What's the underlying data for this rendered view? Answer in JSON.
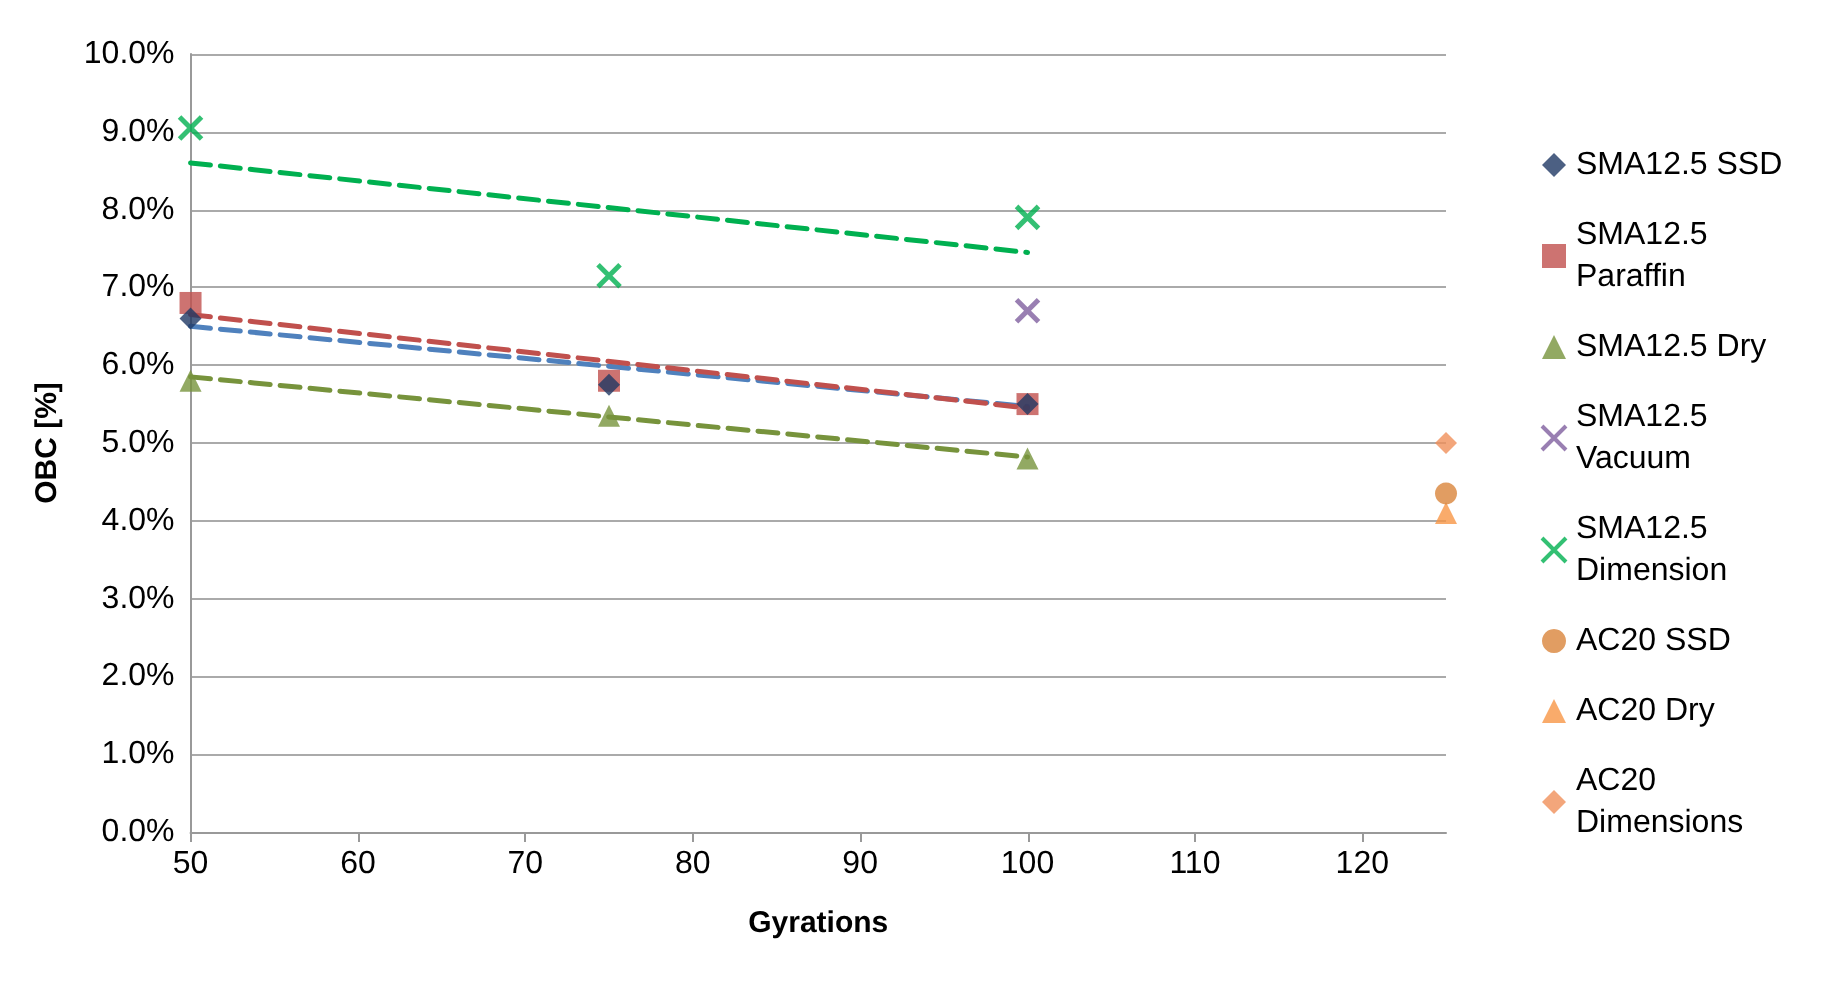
{
  "chart_data": {
    "type": "scatter",
    "xlabel": "Gyrations",
    "ylabel": "OBC [%]",
    "xlim": [
      50,
      125
    ],
    "xticks": [
      50,
      60,
      70,
      80,
      90,
      100,
      110,
      120
    ],
    "ylim": [
      0,
      10
    ],
    "yticks": [
      {
        "value": 0,
        "label": "0.0%"
      },
      {
        "value": 1,
        "label": "1.0%"
      },
      {
        "value": 2,
        "label": "2.0%"
      },
      {
        "value": 3,
        "label": "3.0%"
      },
      {
        "value": 4,
        "label": "4.0%"
      },
      {
        "value": 5,
        "label": "5.0%"
      },
      {
        "value": 6,
        "label": "6.0%"
      },
      {
        "value": 7,
        "label": "7.0%"
      },
      {
        "value": 8,
        "label": "8.0%"
      },
      {
        "value": 9,
        "label": "9.0%"
      },
      {
        "value": 10,
        "label": "10.0%"
      }
    ],
    "grid": "y",
    "legend": "right",
    "series": [
      {
        "name": "SMA12.5 SSD",
        "color": "#1f3864",
        "marker": "diamond",
        "x": [
          50,
          75,
          100
        ],
        "values": [
          6.6,
          5.75,
          5.5
        ]
      },
      {
        "name": "SMA12.5 Paraffin",
        "color": "#c0504d",
        "marker": "square",
        "x": [
          50,
          75,
          100
        ],
        "values": [
          6.8,
          5.8,
          5.5
        ]
      },
      {
        "name": "SMA12.5 Dry",
        "color": "#77933c",
        "marker": "triangle",
        "x": [
          50,
          75,
          100
        ],
        "values": [
          5.8,
          5.35,
          4.8
        ]
      },
      {
        "name": "SMA12.5 Vacuum",
        "color": "#7f5f9f",
        "marker": "cross",
        "x": [
          100
        ],
        "values": [
          6.7
        ]
      },
      {
        "name": "SMA12.5 Dimension",
        "color": "#00b050",
        "marker": "cross",
        "x": [
          50,
          75,
          100
        ],
        "values": [
          9.05,
          7.15,
          7.9
        ]
      },
      {
        "name": "AC20 SSD",
        "color": "#d9843b",
        "marker": "circle",
        "x": [
          125
        ],
        "values": [
          4.35
        ]
      },
      {
        "name": "AC20 Dry",
        "color": "#f79646",
        "marker": "triangle",
        "x": [
          125
        ],
        "values": [
          4.1
        ]
      },
      {
        "name": "AC20 Dimensions",
        "color": "#f0905a",
        "marker": "diamond",
        "x": [
          125
        ],
        "values": [
          5.0
        ]
      },
      {
        "type": "line",
        "color": "#4f81bd",
        "line_style": "dashed",
        "marker": "none",
        "x": [
          50,
          100
        ],
        "values": [
          6.5,
          5.47
        ]
      },
      {
        "type": "line",
        "color": "#c0504d",
        "line_style": "dashed",
        "marker": "none",
        "x": [
          50,
          100
        ],
        "values": [
          6.65,
          5.45
        ]
      },
      {
        "type": "line",
        "color": "#77933c",
        "line_style": "dashed",
        "marker": "none",
        "x": [
          50,
          100
        ],
        "values": [
          5.85,
          4.82
        ]
      },
      {
        "type": "line",
        "color": "#00b050",
        "line_style": "dashed",
        "marker": "none",
        "x": [
          50,
          100
        ],
        "values": [
          8.6,
          7.45
        ]
      }
    ]
  }
}
